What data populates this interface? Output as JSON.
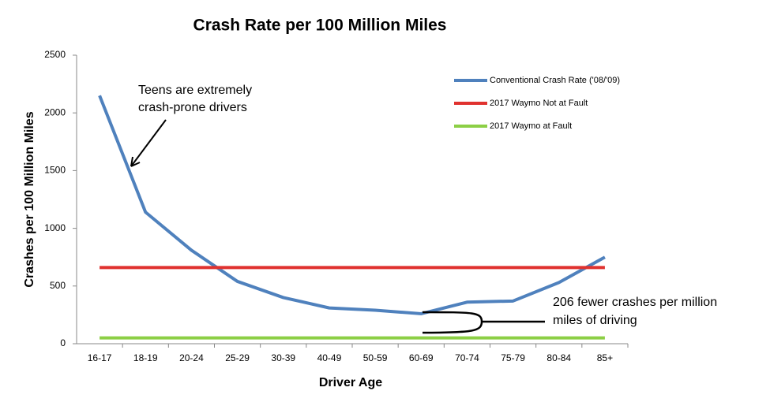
{
  "chart_data": {
    "type": "line",
    "title": "Crash Rate per 100 Million Miles",
    "x_label": "Driver Age",
    "y_label": "Crashes per 100 Million Miles",
    "categories": [
      "16-17",
      "18-19",
      "20-24",
      "25-29",
      "30-39",
      "40-49",
      "50-59",
      "60-69",
      "70-74",
      "75-79",
      "80-84",
      "85+"
    ],
    "series": [
      {
        "name": "Conventional Crash Rate ('08/'09)",
        "color": "#4f81bd",
        "values": [
          2150,
          1140,
          810,
          540,
          400,
          310,
          290,
          260,
          360,
          370,
          530,
          750
        ]
      },
      {
        "name": "2017 Waymo Not at Fault",
        "color": "#e0322f",
        "values": [
          660,
          660,
          660,
          660,
          660,
          660,
          660,
          660,
          660,
          660,
          660,
          660
        ]
      },
      {
        "name": "2017 Waymo at Fault",
        "color": "#8ccf45",
        "values": [
          50,
          50,
          50,
          50,
          50,
          50,
          50,
          50,
          50,
          50,
          50,
          50
        ]
      }
    ],
    "ylim": [
      0,
      2500
    ],
    "yticks": [
      0,
      500,
      1000,
      1500,
      2000,
      2500
    ],
    "grid": false,
    "legend": "upper right",
    "annotations": [
      {
        "lines": [
          "Teens are extremely",
          "crash-prone drivers"
        ]
      },
      {
        "lines": [
          "206 fewer crashes per million",
          "miles of driving"
        ]
      }
    ]
  }
}
